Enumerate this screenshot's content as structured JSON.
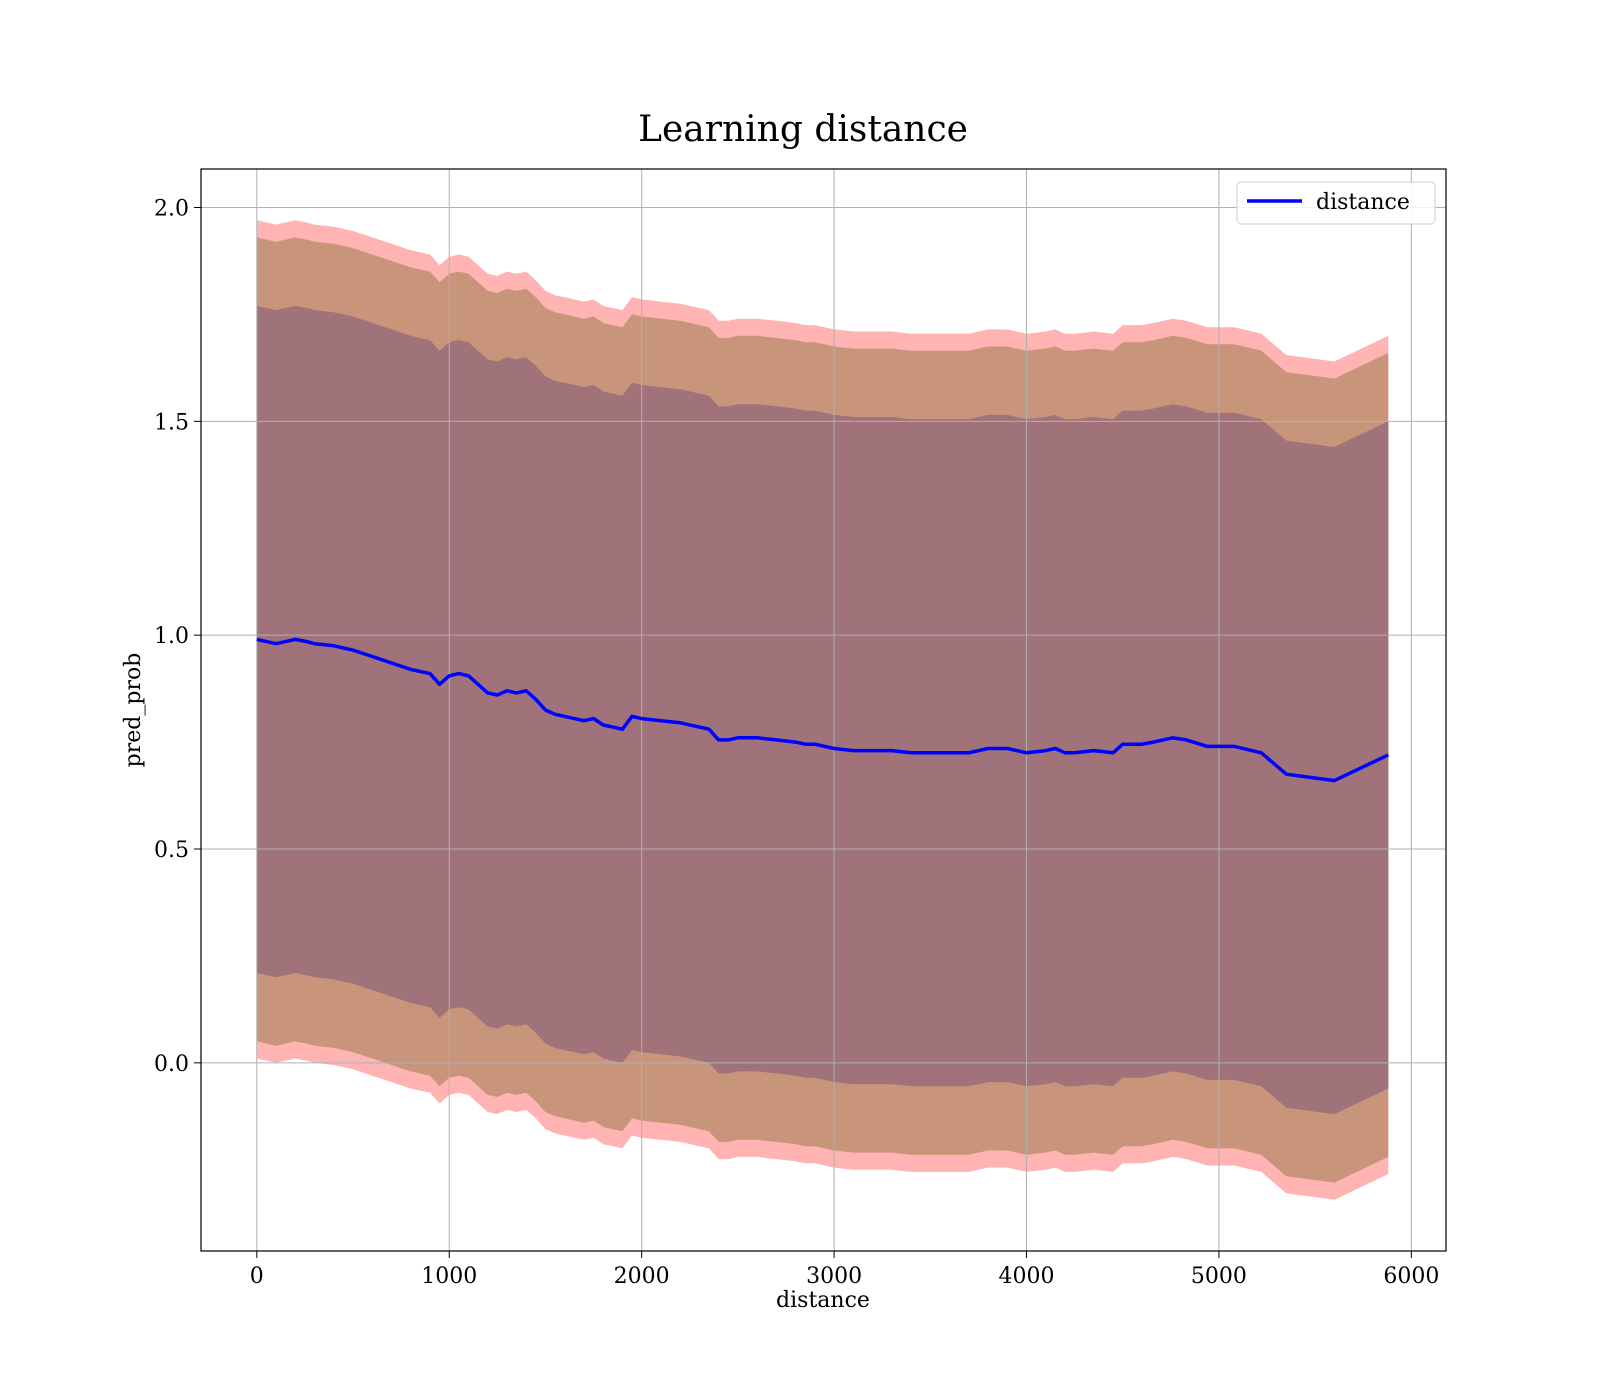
{
  "chart_data": {
    "type": "line",
    "title": "Learning distance",
    "xlabel": "distance",
    "ylabel": "pred_prob",
    "xlim": [
      -290,
      6180
    ],
    "ylim": [
      -0.44,
      2.09
    ],
    "xticks": [
      0,
      1000,
      2000,
      3000,
      4000,
      5000,
      6000
    ],
    "yticks": [
      0.0,
      0.5,
      1.0,
      1.5,
      2.0
    ],
    "ytick_labels": [
      "0.0",
      "0.5",
      "1.0",
      "1.5",
      "2.0"
    ],
    "grid": true,
    "legend_position": "top-right",
    "colors": {
      "line": "#0000ff",
      "band_outer": "#ffb3b3",
      "band_middle": "#c8957a",
      "band_inner": "#a0737a"
    },
    "series": [
      {
        "name": "distance",
        "x": [
          0,
          100,
          200,
          260,
          300,
          400,
          450,
          500,
          600,
          700,
          800,
          900,
          950,
          1000,
          1050,
          1100,
          1200,
          1250,
          1300,
          1350,
          1400,
          1450,
          1500,
          1550,
          1600,
          1700,
          1750,
          1800,
          1850,
          1900,
          1950,
          2000,
          2100,
          2200,
          2300,
          2350,
          2400,
          2450,
          2500,
          2600,
          2700,
          2800,
          2850,
          2900,
          3000,
          3100,
          3200,
          3300,
          3400,
          3500,
          3600,
          3700,
          3800,
          3900,
          4000,
          4100,
          4150,
          4200,
          4250,
          4350,
          4450,
          4500,
          4600,
          4660,
          4760,
          4830,
          4940,
          5080,
          5220,
          5350,
          5600,
          5880
        ],
        "values": [
          0.99,
          0.98,
          0.99,
          0.985,
          0.98,
          0.975,
          0.97,
          0.965,
          0.95,
          0.935,
          0.92,
          0.91,
          0.885,
          0.905,
          0.91,
          0.905,
          0.865,
          0.86,
          0.87,
          0.865,
          0.87,
          0.85,
          0.825,
          0.815,
          0.81,
          0.8,
          0.805,
          0.79,
          0.785,
          0.78,
          0.81,
          0.805,
          0.8,
          0.795,
          0.785,
          0.78,
          0.755,
          0.755,
          0.76,
          0.76,
          0.755,
          0.75,
          0.745,
          0.745,
          0.735,
          0.73,
          0.73,
          0.73,
          0.725,
          0.725,
          0.725,
          0.725,
          0.735,
          0.735,
          0.725,
          0.73,
          0.735,
          0.725,
          0.725,
          0.73,
          0.725,
          0.745,
          0.745,
          0.75,
          0.76,
          0.755,
          0.74,
          0.74,
          0.725,
          0.675,
          0.66,
          0.72
        ]
      }
    ],
    "bands": [
      {
        "offset": 0.98
      },
      {
        "offset": 0.94
      },
      {
        "offset": 0.78
      }
    ]
  }
}
